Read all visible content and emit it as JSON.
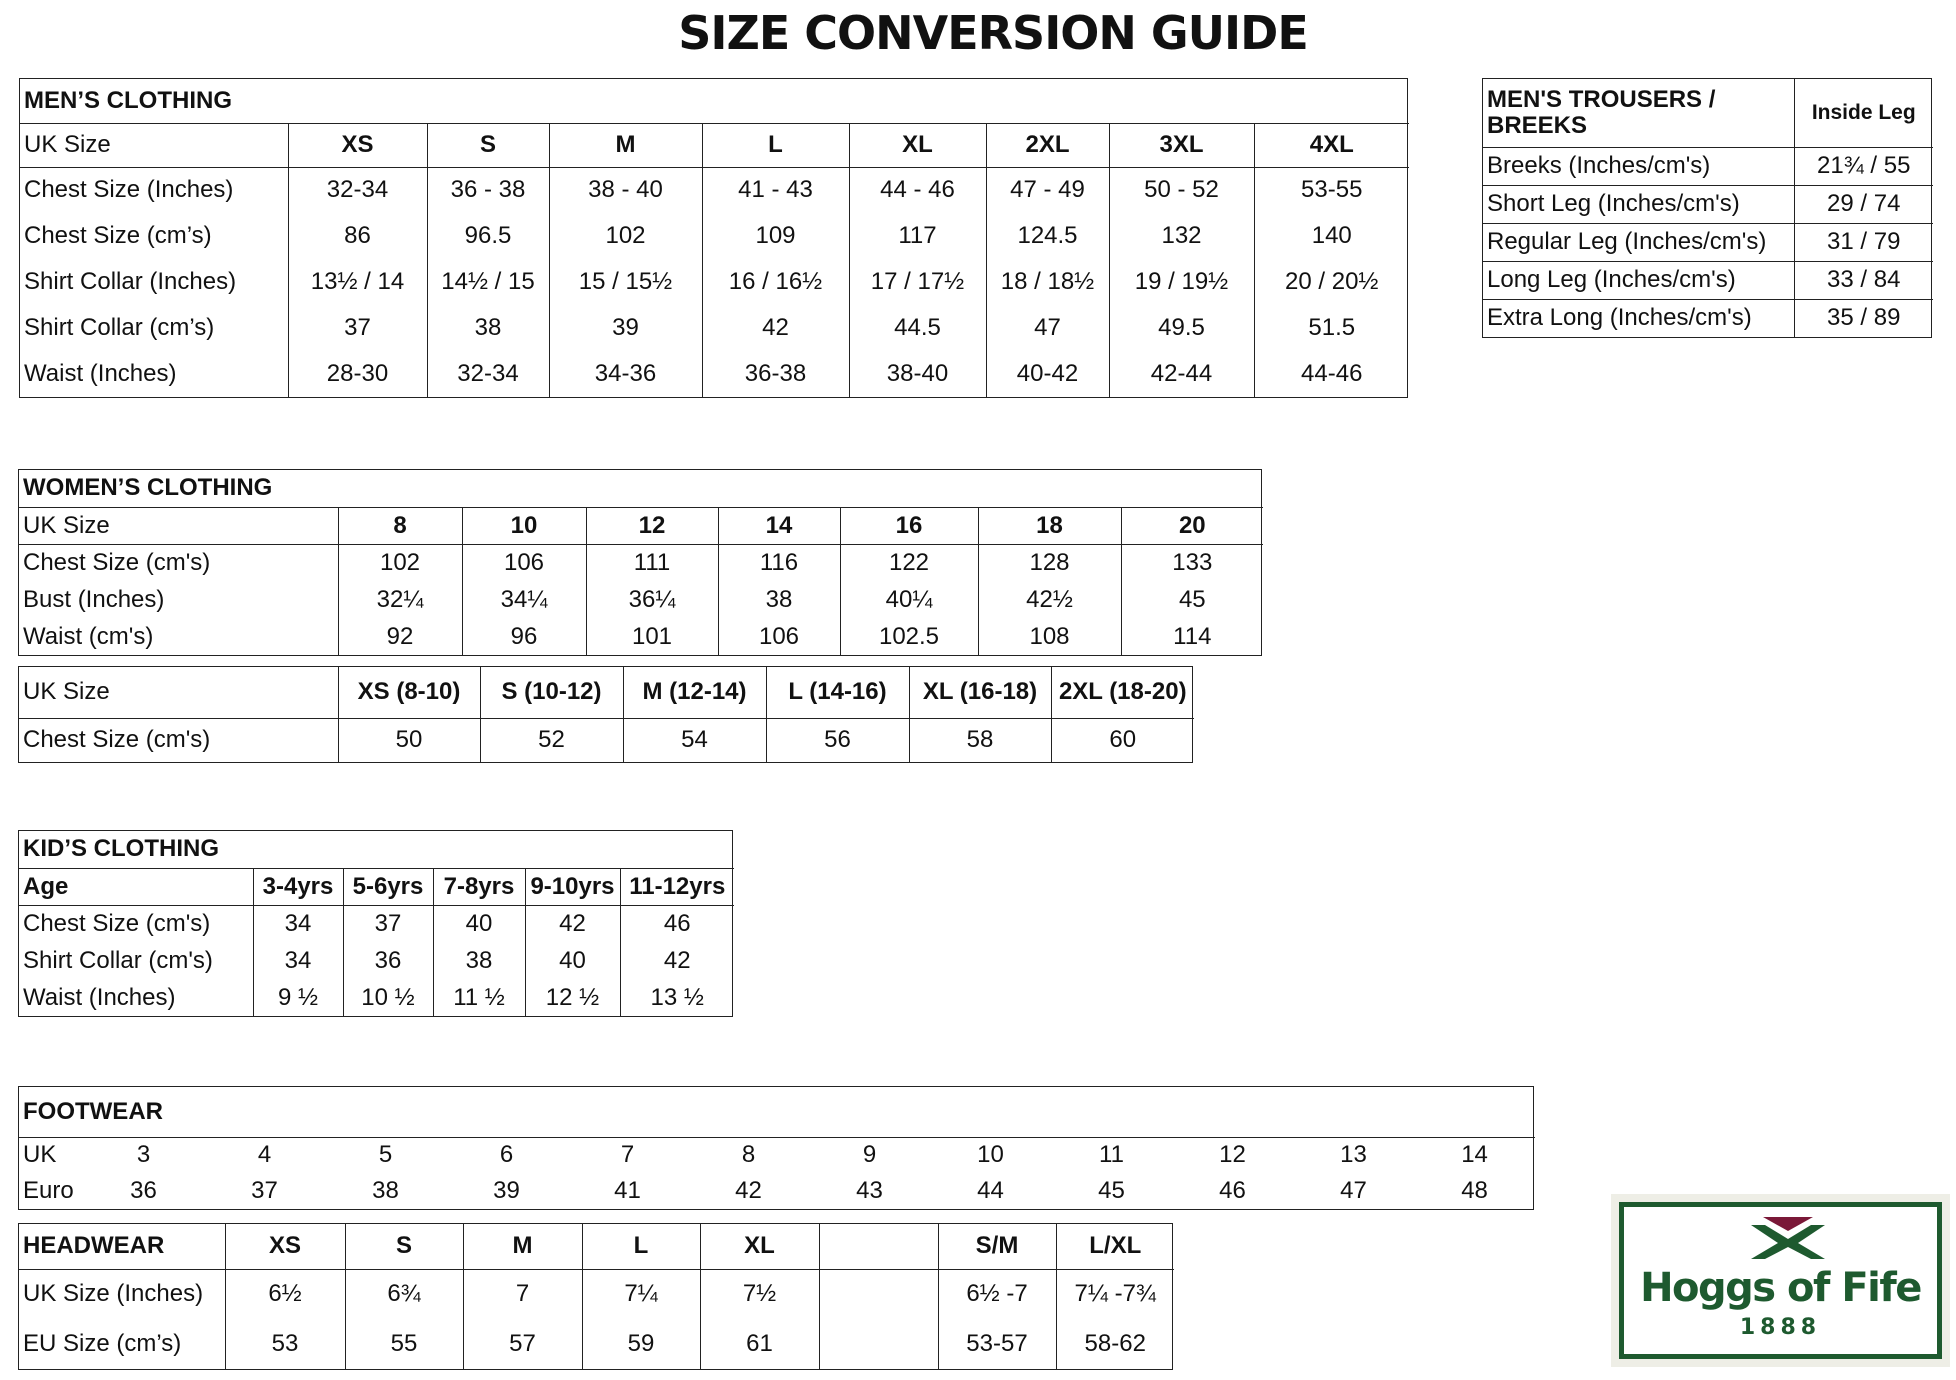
{
  "title": "SIZE CONVERSION GUIDE",
  "men_clothing": {
    "title": "MEN’S CLOTHING",
    "header": [
      "UK Size",
      "XS",
      "S",
      "M",
      "L",
      "XL",
      "2XL",
      "3XL",
      "4XL"
    ],
    "rows": [
      [
        "Chest Size (Inches)",
        "32-34",
        "36 - 38",
        "38 - 40",
        "41 - 43",
        "44 - 46",
        "47 - 49",
        "50 - 52",
        "53-55"
      ],
      [
        "Chest Size (cm’s)",
        "86",
        "96.5",
        "102",
        "109",
        "117",
        "124.5",
        "132",
        "140"
      ],
      [
        "Shirt Collar (Inches)",
        "13½ / 14",
        "14½ / 15",
        "15 / 15½",
        "16 / 16½",
        "17 / 17½",
        "18 / 18½",
        "19 / 19½",
        "20 / 20½"
      ],
      [
        "Shirt Collar (cm’s)",
        "37",
        "38",
        "39",
        "42",
        "44.5",
        "47",
        "49.5",
        "51.5"
      ],
      [
        "Waist (Inches)",
        "28-30",
        "32-34",
        "34-36",
        "36-38",
        "38-40",
        "40-42",
        "42-44",
        "44-46"
      ]
    ]
  },
  "men_trousers": {
    "header": [
      "MEN'S TROUSERS / BREEKS",
      "Inside Leg"
    ],
    "rows": [
      [
        "Breeks (Inches/cm's)",
        "21¾ / 55"
      ],
      [
        "Short Leg (Inches/cm's)",
        "29 / 74"
      ],
      [
        "Regular Leg (Inches/cm's)",
        "31 / 79"
      ],
      [
        "Long Leg (Inches/cm's)",
        "33 / 84"
      ],
      [
        "Extra Long (Inches/cm's)",
        "35 / 89"
      ]
    ]
  },
  "women_clothing": {
    "title": "WOMEN’S CLOTHING",
    "header": [
      "UK Size",
      "8",
      "10",
      "12",
      "14",
      "16",
      "18",
      "20"
    ],
    "rows": [
      [
        "Chest Size (cm's)",
        "102",
        "106",
        "111",
        "116",
        "122",
        "128",
        "133"
      ],
      [
        "Bust (Inches)",
        "32¼",
        "34¼",
        "36¼",
        "38",
        "40¼",
        "42½",
        "45"
      ],
      [
        "Waist (cm's)",
        "92",
        "96",
        "101",
        "106",
        "102.5",
        "108",
        "114"
      ]
    ]
  },
  "women_tops": {
    "header": [
      "UK Size",
      "XS (8-10)",
      "S (10-12)",
      "M (12-14)",
      "L (14-16)",
      "XL (16-18)",
      "2XL (18-20)"
    ],
    "rows": [
      [
        "Chest Size (cm's)",
        "50",
        "52",
        "54",
        "56",
        "58",
        "60"
      ]
    ]
  },
  "kids_clothing": {
    "title": "KID’S CLOTHING",
    "header": [
      "Age",
      "3-4yrs",
      "5-6yrs",
      "7-8yrs",
      "9-10yrs",
      "11-12yrs"
    ],
    "rows": [
      [
        "Chest Size (cm's)",
        "34",
        "37",
        "40",
        "42",
        "46"
      ],
      [
        "Shirt Collar (cm's)",
        "34",
        "36",
        "38",
        "40",
        "42"
      ],
      [
        "Waist (Inches)",
        "9 ½",
        "10 ½",
        "11 ½",
        "12 ½",
        "13 ½"
      ]
    ]
  },
  "footwear": {
    "title": "FOOTWEAR",
    "rows": [
      [
        "UK",
        "3",
        "4",
        "5",
        "6",
        "7",
        "8",
        "9",
        "10",
        "11",
        "12",
        "13",
        "14"
      ],
      [
        "Euro",
        "36",
        "37",
        "38",
        "39",
        "41",
        "42",
        "43",
        "44",
        "45",
        "46",
        "47",
        "48"
      ]
    ]
  },
  "headwear": {
    "header": [
      "HEADWEAR",
      "XS",
      "S",
      "M",
      "L",
      "XL",
      "S/M",
      "L/XL"
    ],
    "rows": [
      [
        "UK Size (Inches)",
        "6½",
        "6¾",
        "7",
        "7¼",
        "7½",
        "6½ -7",
        "7¼ -7¾"
      ],
      [
        "EU Size (cm’s)",
        "53",
        "55",
        "57",
        "59",
        "61",
        "53-57",
        "58-62"
      ]
    ]
  },
  "logo": {
    "name": "Hoggs of Fife",
    "year": "1888"
  }
}
